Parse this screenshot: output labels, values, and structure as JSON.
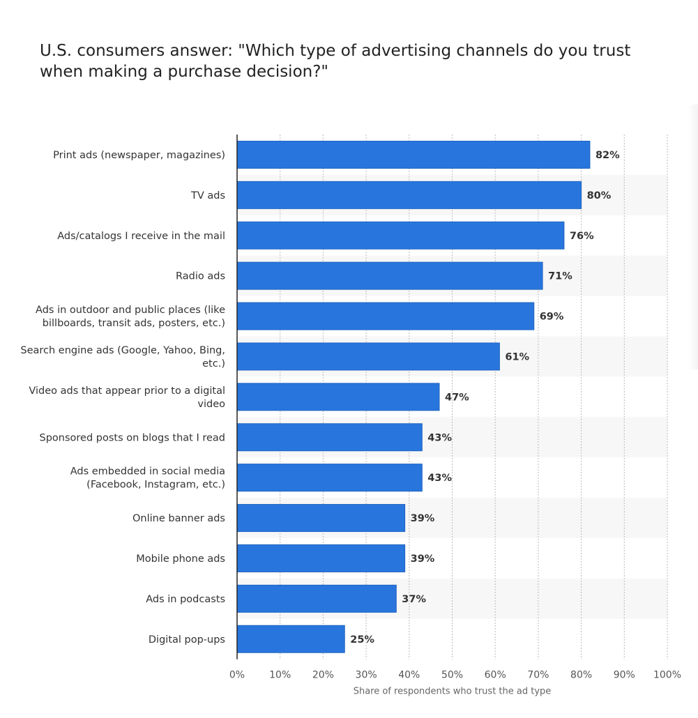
{
  "chart_data": {
    "type": "bar",
    "orientation": "horizontal",
    "title": "U.S. consumers answer: \"Which type of advertising channels do you trust when making a purchase decision?\"",
    "categories": [
      [
        "Print ads (newspaper, magazines)"
      ],
      [
        "TV ads"
      ],
      [
        "Ads/catalogs I receive in the mail"
      ],
      [
        "Radio ads"
      ],
      [
        "Ads in outdoor and public places (like",
        "billboards, transit ads, posters, etc.)"
      ],
      [
        "Search engine ads (Google, Yahoo, Bing,",
        "etc.)"
      ],
      [
        "Video ads that appear prior to a digital",
        "video"
      ],
      [
        "Sponsored posts on blogs that I read"
      ],
      [
        "Ads embedded in social media",
        "(Facebook, Instagram, etc.)"
      ],
      [
        "Online banner ads"
      ],
      [
        "Mobile phone ads"
      ],
      [
        "Ads in podcasts"
      ],
      [
        "Digital pop-ups"
      ]
    ],
    "values": [
      82,
      80,
      76,
      71,
      69,
      61,
      47,
      43,
      43,
      39,
      39,
      37,
      25
    ],
    "value_labels": [
      "82%",
      "80%",
      "76%",
      "71%",
      "69%",
      "61%",
      "47%",
      "43%",
      "43%",
      "39%",
      "39%",
      "37%",
      "25%"
    ],
    "xlabel": "Share of respondents who trust the ad type",
    "ylabel": "",
    "xlim": [
      0,
      100
    ],
    "xticks": [
      "0%",
      "10%",
      "20%",
      "30%",
      "40%",
      "50%",
      "60%",
      "70%",
      "80%",
      "90%",
      "100%"
    ],
    "grid": true,
    "colors": {
      "bar": "#2876dd",
      "bar_edge": "#1f63c2",
      "band": "#f7f7f7"
    }
  }
}
